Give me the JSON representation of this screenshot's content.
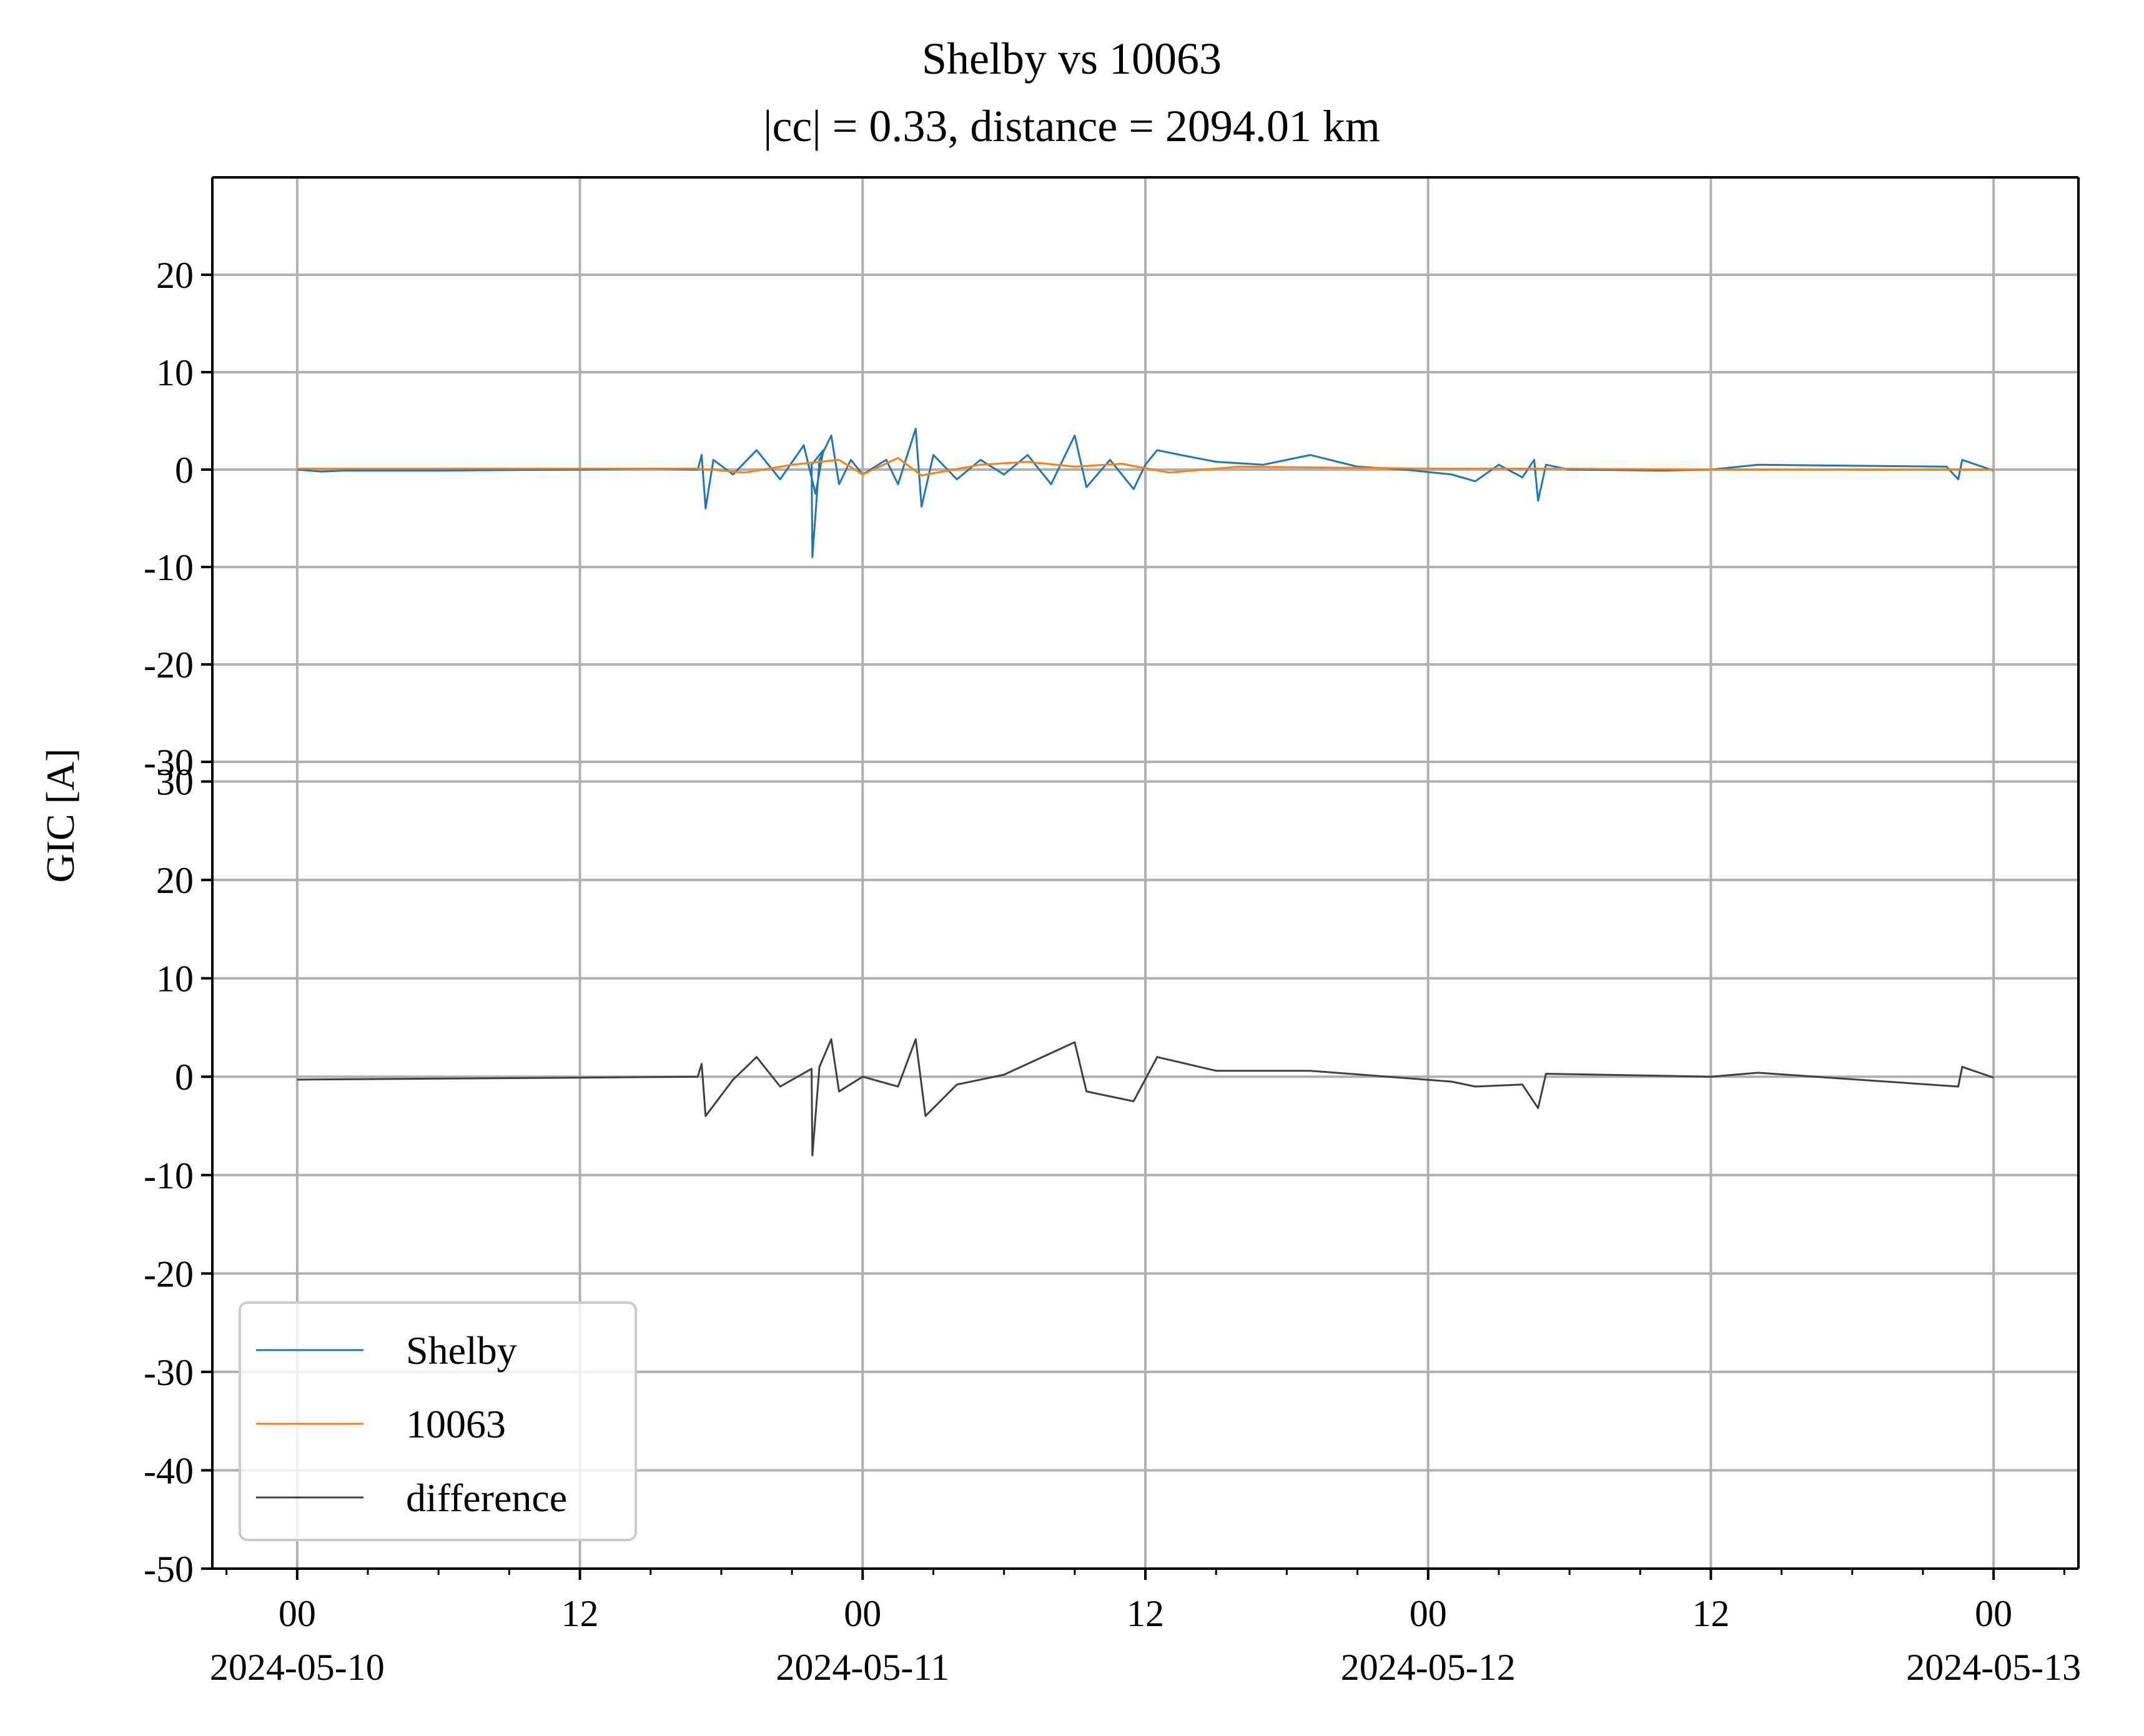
{
  "chart_data": {
    "type": "line",
    "title": "Shelby vs 10063",
    "subtitle": "|cc| = 0.33, distance = 2094.01 km",
    "ylabel": "GIC [A]",
    "xlim": [
      "2024-05-09T20:24",
      "2024-05-13T03:36"
    ],
    "x_ticks": [
      {
        "t": "2024-05-10T00:00",
        "hour": "00",
        "date": "2024-05-10"
      },
      {
        "t": "2024-05-10T12:00",
        "hour": "12",
        "date": ""
      },
      {
        "t": "2024-05-11T00:00",
        "hour": "00",
        "date": "2024-05-11"
      },
      {
        "t": "2024-05-11T12:00",
        "hour": "12",
        "date": ""
      },
      {
        "t": "2024-05-12T00:00",
        "hour": "00",
        "date": "2024-05-12"
      },
      {
        "t": "2024-05-12T12:00",
        "hour": "12",
        "date": ""
      },
      {
        "t": "2024-05-13T00:00",
        "hour": "00",
        "date": "2024-05-13"
      }
    ],
    "grid": true,
    "panels": [
      {
        "ylim": [
          -30,
          30
        ],
        "yticks": [
          -30,
          -20,
          -10,
          0,
          10,
          20
        ],
        "series": [
          "Shelby",
          "10063"
        ]
      },
      {
        "ylim": [
          -50,
          32
        ],
        "yticks": [
          -50,
          -40,
          -30,
          -20,
          -10,
          0,
          10,
          20,
          30
        ],
        "series": [
          "difference"
        ]
      }
    ],
    "series": [
      {
        "name": "Shelby",
        "color": "#1f77b4",
        "points": [
          [
            "2024-05-10T00:00",
            0.0
          ],
          [
            "2024-05-10T01:00",
            -0.2
          ],
          [
            "2024-05-10T02:00",
            -0.1
          ],
          [
            "2024-05-10T06:00",
            -0.1
          ],
          [
            "2024-05-10T12:00",
            0.0
          ],
          [
            "2024-05-10T15:00",
            0.1
          ],
          [
            "2024-05-10T17:00",
            0.0
          ],
          [
            "2024-05-10T17:10",
            1.5
          ],
          [
            "2024-05-10T17:20",
            -4.0
          ],
          [
            "2024-05-10T17:40",
            1.0
          ],
          [
            "2024-05-10T18:30",
            -0.5
          ],
          [
            "2024-05-10T19:30",
            2.0
          ],
          [
            "2024-05-10T20:30",
            -1.0
          ],
          [
            "2024-05-10T21:30",
            2.5
          ],
          [
            "2024-05-10T22:00",
            -2.5
          ],
          [
            "2024-05-10T22:20",
            2.0
          ],
          [
            "2024-05-10T21:50",
            0.5
          ],
          [
            "2024-05-10T21:52",
            -9.0
          ],
          [
            "2024-05-10T22:10",
            1.0
          ],
          [
            "2024-05-10T22:40",
            3.5
          ],
          [
            "2024-05-10T23:00",
            -1.5
          ],
          [
            "2024-05-10T23:30",
            1.0
          ],
          [
            "2024-05-11T00:00",
            -0.5
          ],
          [
            "2024-05-11T01:00",
            1.0
          ],
          [
            "2024-05-11T01:30",
            -1.5
          ],
          [
            "2024-05-11T02:15",
            4.2
          ],
          [
            "2024-05-11T02:30",
            -3.8
          ],
          [
            "2024-05-11T03:00",
            1.5
          ],
          [
            "2024-05-11T04:00",
            -1.0
          ],
          [
            "2024-05-11T05:00",
            1.0
          ],
          [
            "2024-05-11T06:00",
            -0.5
          ],
          [
            "2024-05-11T07:00",
            1.5
          ],
          [
            "2024-05-11T08:00",
            -1.5
          ],
          [
            "2024-05-11T09:00",
            3.5
          ],
          [
            "2024-05-11T09:30",
            -1.8
          ],
          [
            "2024-05-11T10:30",
            1.0
          ],
          [
            "2024-05-11T11:30",
            -2.0
          ],
          [
            "2024-05-11T12:00",
            0.5
          ],
          [
            "2024-05-11T12:30",
            2.0
          ],
          [
            "2024-05-11T13:30",
            1.5
          ],
          [
            "2024-05-11T15:00",
            0.8
          ],
          [
            "2024-05-11T17:00",
            0.5
          ],
          [
            "2024-05-11T19:00",
            1.5
          ],
          [
            "2024-05-11T21:00",
            0.3
          ],
          [
            "2024-05-11T23:00",
            0.0
          ],
          [
            "2024-05-12T01:00",
            -0.5
          ],
          [
            "2024-05-12T02:00",
            -1.2
          ],
          [
            "2024-05-12T03:00",
            0.5
          ],
          [
            "2024-05-12T04:00",
            -0.8
          ],
          [
            "2024-05-12T04:30",
            1.0
          ],
          [
            "2024-05-12T04:40",
            -3.2
          ],
          [
            "2024-05-12T05:00",
            0.5
          ],
          [
            "2024-05-12T06:00",
            0.0
          ],
          [
            "2024-05-12T10:00",
            -0.1
          ],
          [
            "2024-05-12T12:00",
            0.0
          ],
          [
            "2024-05-12T14:00",
            0.5
          ],
          [
            "2024-05-12T18:00",
            0.4
          ],
          [
            "2024-05-12T22:00",
            0.3
          ],
          [
            "2024-05-12T22:30",
            -1.0
          ],
          [
            "2024-05-12T22:40",
            1.0
          ],
          [
            "2024-05-13T00:00",
            -0.1
          ]
        ]
      },
      {
        "name": "10063",
        "color": "#ff7f0e",
        "points": [
          [
            "2024-05-10T00:00",
            0.1
          ],
          [
            "2024-05-10T12:00",
            0.1
          ],
          [
            "2024-05-10T17:00",
            0.1
          ],
          [
            "2024-05-10T19:00",
            -0.3
          ],
          [
            "2024-05-10T21:00",
            0.5
          ],
          [
            "2024-05-10T23:00",
            1.0
          ],
          [
            "2024-05-11T00:00",
            -0.5
          ],
          [
            "2024-05-11T01:30",
            1.2
          ],
          [
            "2024-05-11T02:30",
            -0.6
          ],
          [
            "2024-05-11T05:00",
            0.5
          ],
          [
            "2024-05-11T07:00",
            0.8
          ],
          [
            "2024-05-11T09:00",
            0.3
          ],
          [
            "2024-05-11T11:00",
            0.6
          ],
          [
            "2024-05-11T13:00",
            -0.3
          ],
          [
            "2024-05-11T16:00",
            0.3
          ],
          [
            "2024-05-11T20:00",
            0.2
          ],
          [
            "2024-05-12T00:00",
            0.1
          ],
          [
            "2024-05-12T06:00",
            0.1
          ],
          [
            "2024-05-12T12:00",
            0.0
          ],
          [
            "2024-05-13T00:00",
            0.0
          ]
        ]
      },
      {
        "name": "difference",
        "color": "#404040",
        "points": [
          [
            "2024-05-10T00:00",
            -0.3
          ],
          [
            "2024-05-10T06:00",
            -0.2
          ],
          [
            "2024-05-10T12:00",
            -0.1
          ],
          [
            "2024-05-10T17:00",
            0.0
          ],
          [
            "2024-05-10T17:10",
            1.3
          ],
          [
            "2024-05-10T17:20",
            -4.0
          ],
          [
            "2024-05-10T18:30",
            -0.3
          ],
          [
            "2024-05-10T19:30",
            2.0
          ],
          [
            "2024-05-10T20:30",
            -1.0
          ],
          [
            "2024-05-10T21:50",
            0.8
          ],
          [
            "2024-05-10T21:52",
            -8.0
          ],
          [
            "2024-05-10T22:10",
            1.0
          ],
          [
            "2024-05-10T22:40",
            3.8
          ],
          [
            "2024-05-10T23:00",
            -1.5
          ],
          [
            "2024-05-11T00:00",
            0.0
          ],
          [
            "2024-05-11T01:30",
            -1.0
          ],
          [
            "2024-05-11T02:15",
            3.8
          ],
          [
            "2024-05-11T02:40",
            -4.0
          ],
          [
            "2024-05-11T04:00",
            -0.8
          ],
          [
            "2024-05-11T06:00",
            0.2
          ],
          [
            "2024-05-11T09:00",
            3.5
          ],
          [
            "2024-05-11T09:30",
            -1.5
          ],
          [
            "2024-05-11T11:30",
            -2.5
          ],
          [
            "2024-05-11T12:30",
            2.0
          ],
          [
            "2024-05-11T15:00",
            0.6
          ],
          [
            "2024-05-11T19:00",
            0.6
          ],
          [
            "2024-05-12T01:00",
            -0.5
          ],
          [
            "2024-05-12T02:00",
            -1.0
          ],
          [
            "2024-05-12T04:00",
            -0.8
          ],
          [
            "2024-05-12T04:40",
            -3.2
          ],
          [
            "2024-05-12T05:00",
            0.3
          ],
          [
            "2024-05-12T12:00",
            0.0
          ],
          [
            "2024-05-12T14:00",
            0.4
          ],
          [
            "2024-05-12T22:30",
            -1.0
          ],
          [
            "2024-05-12T22:40",
            1.0
          ],
          [
            "2024-05-13T00:00",
            -0.1
          ]
        ]
      }
    ],
    "legend": {
      "placement": "lower-left",
      "entries": [
        "Shelby",
        "10063",
        "difference"
      ]
    }
  }
}
